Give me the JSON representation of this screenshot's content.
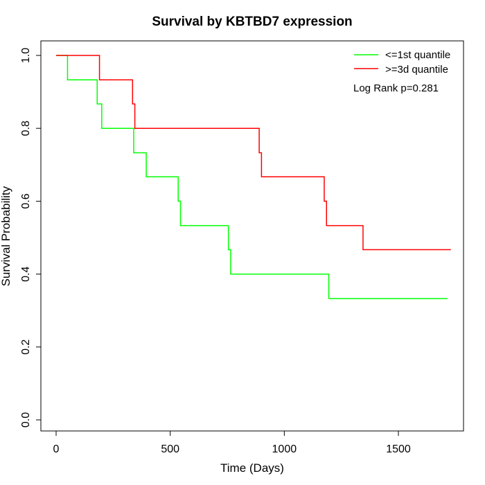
{
  "chart_data": {
    "type": "line",
    "step": true,
    "title": "Survival by KBTBD7 expression",
    "xlabel": "Time (Days)",
    "ylabel": "Survival Probability",
    "xlim": [
      0,
      1750
    ],
    "ylim": [
      0,
      1
    ],
    "x_ticks": [
      "0",
      "500",
      "1000",
      "1500"
    ],
    "x_tick_values": [
      0,
      500,
      1000,
      1500
    ],
    "y_ticks": [
      "0.0",
      "0.2",
      "0.4",
      "0.6",
      "0.8",
      "1.0"
    ],
    "y_tick_values": [
      0,
      0.2,
      0.4,
      0.6,
      0.8,
      1.0
    ],
    "legend_position": "top-right",
    "annotation": "Log Rank p=0.281",
    "series": [
      {
        "name": "<=1st quantile",
        "color": "#00ff00",
        "x": [
          0,
          50,
          180,
          200,
          340,
          395,
          535,
          545,
          755,
          765,
          1195,
          1715
        ],
        "y": [
          1.0,
          0.933,
          0.867,
          0.8,
          0.733,
          0.667,
          0.6,
          0.533,
          0.467,
          0.4,
          0.333,
          0.333
        ]
      },
      {
        "name": ">=3d quantile",
        "color": "#ff0000",
        "x": [
          0,
          190,
          335,
          345,
          890,
          900,
          1175,
          1185,
          1345,
          1730
        ],
        "y": [
          1.0,
          0.933,
          0.867,
          0.8,
          0.733,
          0.667,
          0.6,
          0.533,
          0.467,
          0.467
        ]
      }
    ]
  }
}
